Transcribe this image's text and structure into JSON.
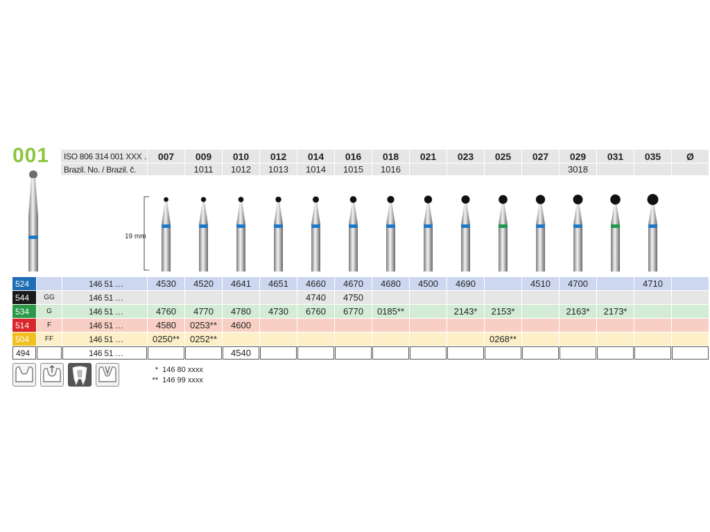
{
  "title": "001",
  "header": {
    "iso_label": "ISO 806 314 001 XXX …",
    "brazil_label": "Brazil. No. / Brazil. č.",
    "sizes": [
      "007",
      "009",
      "010",
      "012",
      "014",
      "016",
      "018",
      "021",
      "023",
      "025",
      "027",
      "029",
      "031",
      "035"
    ],
    "diameter_symbol": "Ø",
    "brazil_numbers": [
      "",
      "1011",
      "1012",
      "1013",
      "1014",
      "1015",
      "1016",
      "",
      "",
      "",
      "",
      "3018",
      "",
      ""
    ]
  },
  "length_label": "19 mm",
  "burs": [
    {
      "size": "007",
      "band": "blue"
    },
    {
      "size": "009",
      "band": "blue"
    },
    {
      "size": "010",
      "band": "blue"
    },
    {
      "size": "012",
      "band": "blue"
    },
    {
      "size": "014",
      "band": "blue"
    },
    {
      "size": "016",
      "band": "blue"
    },
    {
      "size": "018",
      "band": "blue"
    },
    {
      "size": "021",
      "band": "blue"
    },
    {
      "size": "023",
      "band": "blue"
    },
    {
      "size": "025",
      "band": "green"
    },
    {
      "size": "027",
      "band": "blue"
    },
    {
      "size": "029",
      "band": "blue"
    },
    {
      "size": "031",
      "band": "green"
    },
    {
      "size": "035",
      "band": "blue"
    }
  ],
  "band_colors": {
    "blue": "#1e78c8",
    "green": "#1a9a4a"
  },
  "rows": [
    {
      "code": "524",
      "grit": "",
      "code_color": "#1f6db5",
      "row_color": "#cdd8f0",
      "ref": "146 51 …",
      "values": [
        "4530",
        "4520",
        "4641",
        "4651",
        "4660",
        "4670",
        "4680",
        "4500",
        "4690",
        "",
        "4510",
        "4700",
        "",
        "4710"
      ]
    },
    {
      "code": "544",
      "grit": "GG",
      "code_color": "#1a1a1a",
      "row_color": "#e6e6e6",
      "ref": "146 51 …",
      "values": [
        "",
        "",
        "",
        "",
        "4740",
        "4750",
        "",
        "",
        "",
        "",
        "",
        "",
        "",
        ""
      ]
    },
    {
      "code": "534",
      "grit": "G",
      "code_color": "#2a9a47",
      "row_color": "#d3ecd5",
      "ref": "146 51 …",
      "values": [
        "4760",
        "4770",
        "4780",
        "4730",
        "6760",
        "6770",
        "0185**",
        "",
        "2143*",
        "2153*",
        "",
        "2163*",
        "2173*",
        ""
      ]
    },
    {
      "code": "514",
      "grit": "F",
      "code_color": "#d9262b",
      "row_color": "#f8cfc4",
      "ref": "146 51 …",
      "values": [
        "4580",
        "0253**",
        "4600",
        "",
        "",
        "",
        "",
        "",
        "",
        "",
        "",
        "",
        "",
        ""
      ]
    },
    {
      "code": "504",
      "grit": "FF",
      "code_color": "#f2c01e",
      "row_color": "#fdf0c8",
      "ref": "146 51 …",
      "values": [
        "0250**",
        "0252**",
        "",
        "",
        "",
        "",
        "",
        "",
        "",
        "0268**",
        "",
        "",
        "",
        ""
      ]
    },
    {
      "code": "494",
      "grit": "",
      "code_color": "#ffffff",
      "row_color": "#ffffff",
      "ref": "146 51 …",
      "values": [
        "",
        "",
        "4540",
        "",
        "",
        "",
        "",
        "",
        "",
        "",
        "",
        "",
        "",
        ""
      ]
    }
  ],
  "legend": [
    {
      "mark": "*",
      "text": "146 80 xxxx"
    },
    {
      "mark": "**",
      "text": "146 99 xxxx"
    }
  ],
  "icons": [
    "cavity-icon",
    "cavity-upward-icon",
    "tooth-section-icon",
    "cavity-taper-icon"
  ]
}
